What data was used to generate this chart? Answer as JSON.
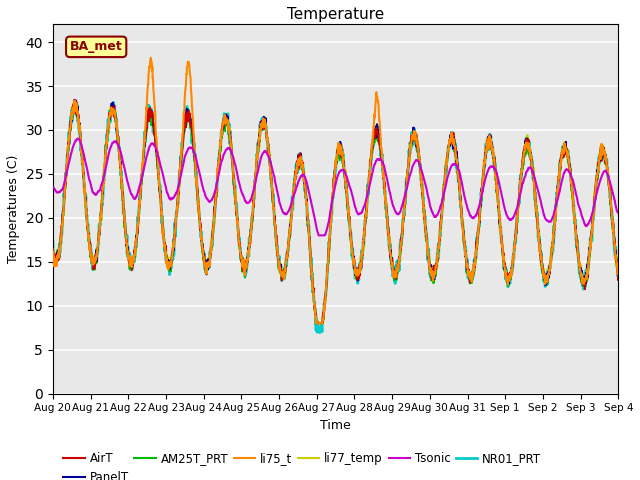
{
  "title": "Temperature",
  "ylabel": "Temperatures (C)",
  "xlabel": "Time",
  "ylim": [
    0,
    42
  ],
  "yticks": [
    0,
    5,
    10,
    15,
    20,
    25,
    30,
    35,
    40
  ],
  "xtick_labels": [
    "Aug 20",
    "Aug 21",
    "Aug 22",
    "Aug 23",
    "Aug 24",
    "Aug 25",
    "Aug 26",
    "Aug 27",
    "Aug 28",
    "Aug 29",
    "Aug 30",
    "Aug 31",
    "Sep 1",
    "Sep 2",
    "Sep 3",
    "Sep 4"
  ],
  "bg_color": "#e8e8e8",
  "annotation_text": "BA_met",
  "annotation_bg": "#ffff99",
  "annotation_border": "#8b0000",
  "annotation_text_color": "#8b0000",
  "series": {
    "AirT": {
      "color": "#cc0000",
      "lw": 1.2,
      "zorder": 5
    },
    "PanelT": {
      "color": "#000099",
      "lw": 1.2,
      "zorder": 4
    },
    "AM25T_PRT": {
      "color": "#00bb00",
      "lw": 1.2,
      "zorder": 3
    },
    "li75_t": {
      "color": "#ff8800",
      "lw": 1.5,
      "zorder": 6
    },
    "li77_temp": {
      "color": "#cccc00",
      "lw": 1.5,
      "zorder": 3
    },
    "Tsonic": {
      "color": "#cc00cc",
      "lw": 1.5,
      "zorder": 7
    },
    "NR01_PRT": {
      "color": "#00cccc",
      "lw": 2.0,
      "zorder": 2
    }
  }
}
